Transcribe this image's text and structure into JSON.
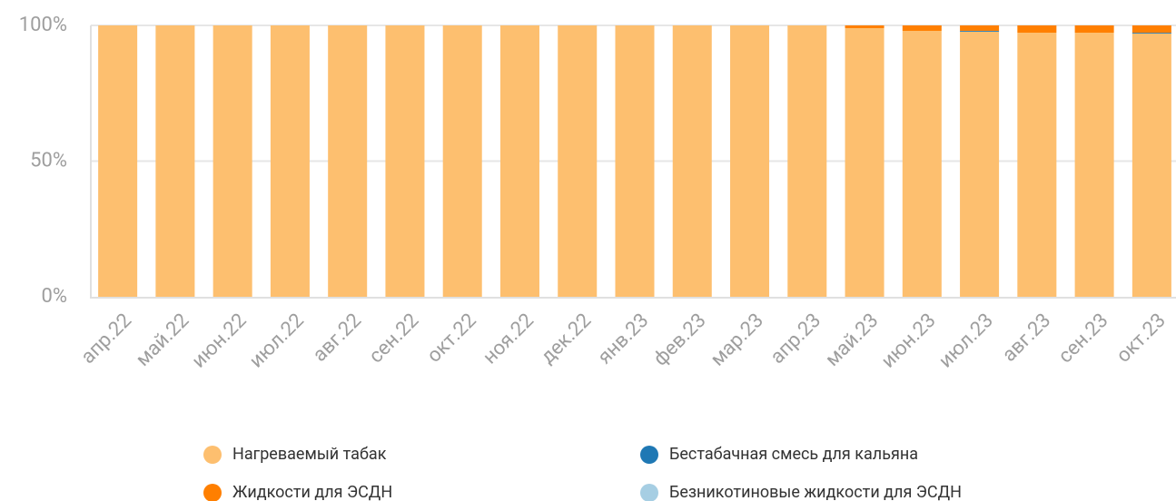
{
  "chart_data": {
    "type": "stacked_bar",
    "categories": [
      "апр.22",
      "май.22",
      "июн.22",
      "июл.22",
      "авг.22",
      "сен.22",
      "окт.22",
      "ноя.22",
      "дек.22",
      "янв.23",
      "фев.23",
      "мар.23",
      "апр.23",
      "май.23",
      "июн.23",
      "июл.23",
      "авг.23",
      "сен.23",
      "окт.23"
    ],
    "series": [
      {
        "name": "Нагреваемый табак",
        "color": "#fdbf6f",
        "values": [
          100,
          100,
          100,
          100,
          100,
          100,
          100,
          100,
          100,
          100,
          100,
          100,
          100,
          99,
          98,
          97.7,
          97.3,
          97.3,
          97
        ]
      },
      {
        "name": "Бестабачная смесь для кальяна",
        "color": "#1f78b4",
        "values": [
          0,
          0,
          0,
          0,
          0,
          0,
          0,
          0,
          0,
          0,
          0,
          0,
          0,
          0,
          0,
          0.3,
          0,
          0,
          0.3
        ]
      },
      {
        "name": "Жидкости для ЭСДН",
        "color": "#ff7f00",
        "values": [
          0,
          0,
          0,
          0,
          0,
          0,
          0,
          0,
          0,
          0,
          0,
          0,
          0,
          1,
          2,
          2,
          2.7,
          2.7,
          2.7
        ]
      },
      {
        "name": "Безникотиновые жидкости для ЭСДН",
        "color": "#a6cee3",
        "values": [
          0,
          0,
          0,
          0,
          0,
          0,
          0,
          0,
          0,
          0,
          0,
          0,
          0,
          0,
          0,
          0,
          0,
          0,
          0
        ]
      }
    ],
    "ylim": [
      0,
      100
    ],
    "yticks": [
      {
        "value": 0,
        "label": "0%"
      },
      {
        "value": 50,
        "label": "50%"
      },
      {
        "value": 100,
        "label": "100%"
      }
    ],
    "grid": true
  }
}
